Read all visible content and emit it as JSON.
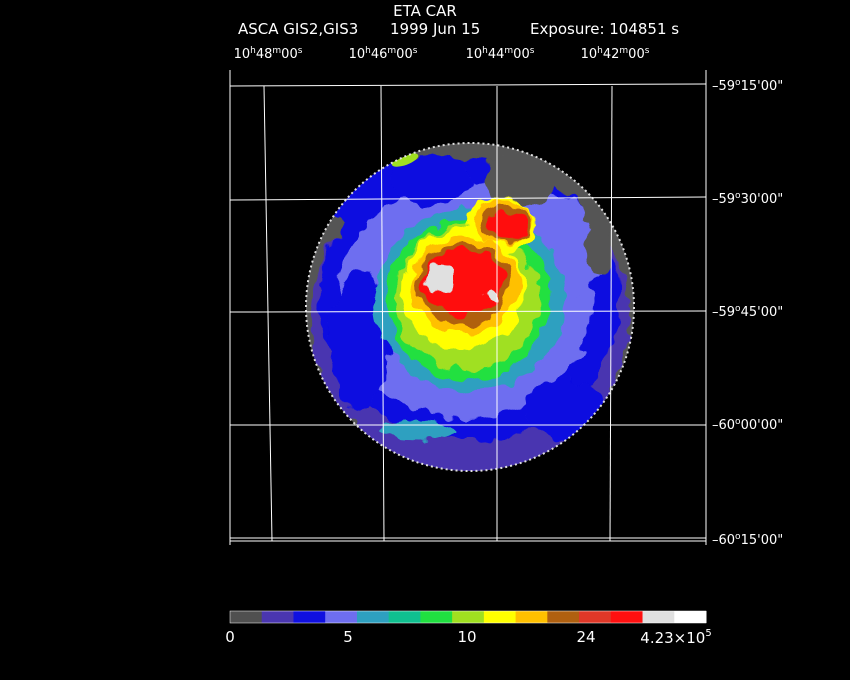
{
  "header": {
    "object": "ETA CAR",
    "instrument": "ASCA GIS2,GIS3",
    "date": "1999 Jun 15",
    "exposure": "Exposure: 104851 s"
  },
  "axes": {
    "ra_ticks": [
      {
        "h": "10",
        "m": "48",
        "s": "00"
      },
      {
        "h": "10",
        "m": "46",
        "s": "00"
      },
      {
        "h": "10",
        "m": "44",
        "s": "00"
      },
      {
        "h": "10",
        "m": "42",
        "s": "00"
      }
    ],
    "dec_ticks": [
      {
        "d": "-59",
        "m": "15",
        "s": "00"
      },
      {
        "d": "-59",
        "m": "30",
        "s": "00"
      },
      {
        "d": "-59",
        "m": "45",
        "s": "00"
      },
      {
        "d": "-60",
        "m": "00",
        "s": "00"
      },
      {
        "d": "-60",
        "m": "15",
        "s": "00"
      }
    ]
  },
  "colorbar": {
    "colors": [
      "#505050",
      "#4a36b0",
      "#1010e0",
      "#6e6ef0",
      "#2ea0c0",
      "#10c090",
      "#20e040",
      "#a0e020",
      "#ffff00",
      "#ffc000",
      "#b06010",
      "#e03828",
      "#ff1010",
      "#e0e0e0",
      "#ffffff"
    ],
    "labels": [
      {
        "text": "0",
        "sup": ""
      },
      {
        "text": "5",
        "sup": ""
      },
      {
        "text": "10",
        "sup": ""
      },
      {
        "text": "24",
        "sup": ""
      },
      {
        "text": "4.23×10",
        "sup": "5"
      }
    ]
  },
  "image": {
    "palette": {
      "gray": "#555555",
      "indigo": "#4a36b0",
      "blue": "#1010e0",
      "lightblue": "#6e6ef0",
      "teal": "#2ea0c0",
      "green": "#20e040",
      "yellowgreen": "#a0e020",
      "yellow": "#ffff00",
      "orange": "#ffc000",
      "brown": "#b06010",
      "red": "#ff1010",
      "white": "#e0e0e0"
    }
  }
}
